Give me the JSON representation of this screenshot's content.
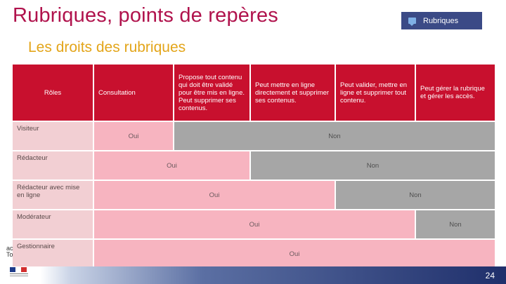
{
  "header": {
    "title": "Rubriques, points de repères",
    "subtitle": "Les droits des rubriques",
    "tag_label": "Rubriques"
  },
  "table": {
    "headers": [
      "Rôles",
      "Consultation",
      "Propose tout contenu qui doit être validé pour être mis en ligne. Peut supprimer ses contenus.",
      "Peut mettre en ligne directement et supprimer ses contenus.",
      "Peut valider, mettre en ligne et supprimer tout contenu.",
      "Peut gérer la rubrique et gérer les accès."
    ],
    "rows": [
      {
        "role": "Visiteur",
        "oui": "Oui",
        "non": "Non"
      },
      {
        "role": "Rédacteur",
        "oui": "Oui",
        "non": "Non"
      },
      {
        "role": "Rédacteur avec mise en ligne",
        "oui": "Oui",
        "non": "Non"
      },
      {
        "role": "Modérateur",
        "oui": "Oui",
        "non": "Non"
      },
      {
        "role": "Gestionnaire",
        "oui": "Oui"
      }
    ]
  },
  "side_text": "ac\nTo",
  "footer": {
    "page_number": "24"
  },
  "colors": {
    "title": "#b0124c",
    "subtitle": "#e3a51a",
    "header_red": "#c8102e",
    "oui_pink": "#f7b4c0",
    "non_grey": "#a6a6a6",
    "role_pink": "#f2cfd3",
    "footer_navy": "#1f2f6b"
  }
}
